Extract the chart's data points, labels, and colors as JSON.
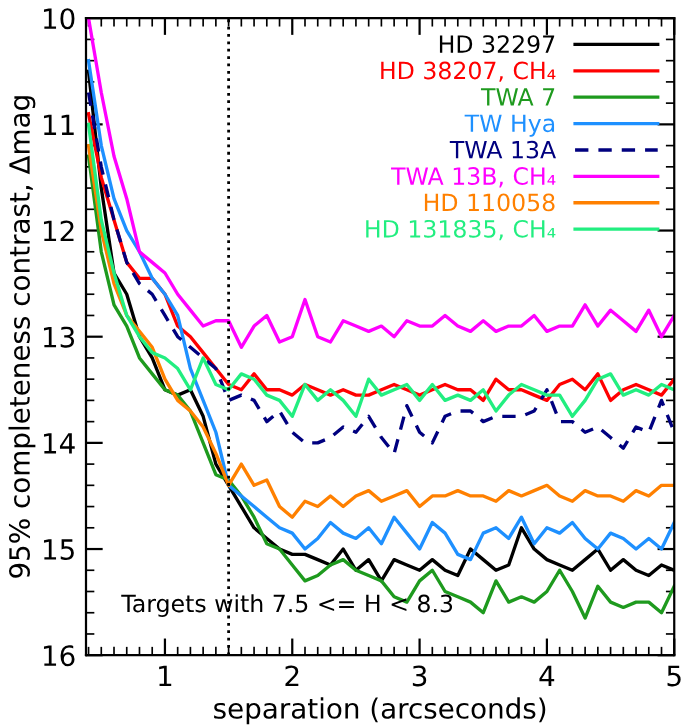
{
  "chart_data": {
    "type": "line",
    "xlabel": "separation (arcseconds)",
    "ylabel": "95% completeness contrast, Δmag",
    "x": [
      0.4,
      0.5,
      0.6,
      0.7,
      0.8,
      0.9,
      1.0,
      1.1,
      1.2,
      1.3,
      1.4,
      1.5,
      1.6,
      1.7,
      1.8,
      1.9,
      2.0,
      2.1,
      2.2,
      2.3,
      2.4,
      2.5,
      2.6,
      2.7,
      2.8,
      2.9,
      3.0,
      3.1,
      3.2,
      3.3,
      3.4,
      3.5,
      3.6,
      3.7,
      3.8,
      3.9,
      4.0,
      4.1,
      4.2,
      4.3,
      4.4,
      4.5,
      4.6,
      4.7,
      4.8,
      4.9,
      5.0
    ],
    "series": [
      {
        "name": "HD 32297",
        "color": "#000000",
        "line_style": "solid",
        "values": [
          10.5,
          11.6,
          12.4,
          12.6,
          13.0,
          13.2,
          13.5,
          13.55,
          13.5,
          13.75,
          14.2,
          14.4,
          14.6,
          14.8,
          14.9,
          15.0,
          15.05,
          15.05,
          15.1,
          15.15,
          15.0,
          15.2,
          15.1,
          15.3,
          15.1,
          15.15,
          15.2,
          15.1,
          15.2,
          15.25,
          15.0,
          15.1,
          15.2,
          15.15,
          14.8,
          15.0,
          15.1,
          15.15,
          15.2,
          15.1,
          15.0,
          15.2,
          15.1,
          15.2,
          15.25,
          15.15,
          15.2
        ]
      },
      {
        "name": "HD 38207, CH₄",
        "color": "#ff0000",
        "line_style": "solid",
        "values": [
          10.9,
          11.5,
          11.9,
          12.3,
          12.45,
          12.45,
          12.6,
          12.9,
          13.0,
          13.15,
          13.3,
          13.45,
          13.5,
          13.35,
          13.5,
          13.5,
          13.55,
          13.45,
          13.5,
          13.55,
          13.5,
          13.55,
          13.55,
          13.5,
          13.45,
          13.5,
          13.55,
          13.5,
          13.45,
          13.5,
          13.5,
          13.6,
          13.4,
          13.5,
          13.5,
          13.55,
          13.6,
          13.45,
          13.4,
          13.5,
          13.35,
          13.6,
          13.5,
          13.45,
          13.5,
          13.55,
          13.4
        ]
      },
      {
        "name": "TWA 7",
        "color": "#1e9a1e",
        "line_style": "solid",
        "values": [
          11.3,
          12.2,
          12.7,
          12.9,
          13.2,
          13.35,
          13.5,
          13.55,
          13.7,
          14.0,
          14.3,
          14.35,
          14.5,
          14.7,
          14.95,
          15.0,
          15.15,
          15.3,
          15.25,
          15.15,
          15.1,
          15.2,
          15.25,
          15.3,
          15.45,
          15.5,
          15.3,
          15.2,
          15.4,
          15.45,
          15.5,
          15.6,
          15.3,
          15.5,
          15.45,
          15.5,
          15.4,
          15.2,
          15.4,
          15.65,
          15.35,
          15.5,
          15.55,
          15.5,
          15.5,
          15.6,
          15.35
        ]
      },
      {
        "name": "TW Hya",
        "color": "#1e90ff",
        "line_style": "solid",
        "values": [
          10.4,
          11.2,
          11.7,
          12.0,
          12.2,
          12.45,
          12.6,
          12.8,
          13.3,
          13.6,
          13.9,
          14.4,
          14.5,
          14.6,
          14.7,
          14.8,
          14.85,
          15.0,
          14.9,
          14.75,
          14.85,
          14.9,
          14.8,
          14.95,
          14.7,
          14.85,
          15.0,
          14.75,
          14.85,
          15.05,
          15.1,
          14.85,
          14.8,
          14.9,
          14.7,
          14.95,
          14.8,
          14.85,
          14.75,
          14.9,
          15.0,
          14.85,
          14.9,
          15.0,
          14.9,
          15.0,
          14.75
        ]
      },
      {
        "name": "TWA 13A",
        "color": "#00007f",
        "line_style": "dashed",
        "values": [
          10.7,
          11.4,
          11.9,
          12.3,
          12.5,
          12.6,
          12.8,
          13.0,
          13.1,
          13.2,
          13.3,
          13.6,
          13.55,
          13.6,
          13.8,
          13.7,
          13.9,
          14.0,
          14.0,
          13.95,
          13.85,
          13.9,
          13.75,
          13.95,
          14.1,
          13.65,
          13.9,
          14.0,
          13.75,
          13.7,
          13.7,
          13.8,
          13.75,
          13.75,
          13.75,
          13.7,
          13.5,
          13.8,
          13.8,
          13.9,
          13.85,
          13.95,
          14.05,
          13.85,
          13.9,
          13.6,
          13.9
        ]
      },
      {
        "name": "TWA 13B, CH₄",
        "color": "#ff00ff",
        "line_style": "solid",
        "values": [
          10.0,
          10.7,
          11.3,
          11.7,
          12.2,
          12.3,
          12.4,
          12.6,
          12.75,
          12.9,
          12.85,
          12.85,
          13.1,
          12.9,
          12.8,
          13.05,
          13.0,
          12.65,
          13.0,
          13.05,
          12.85,
          12.9,
          12.95,
          12.9,
          13.0,
          12.85,
          12.9,
          12.9,
          12.8,
          12.9,
          12.95,
          12.85,
          12.95,
          12.9,
          12.9,
          12.8,
          12.95,
          12.9,
          12.9,
          12.7,
          12.9,
          12.75,
          12.85,
          12.95,
          12.75,
          13.0,
          12.8
        ]
      },
      {
        "name": "HD 110058",
        "color": "#ff8000",
        "line_style": "solid",
        "values": [
          11.2,
          12.0,
          12.5,
          12.8,
          12.95,
          13.1,
          13.4,
          13.6,
          13.7,
          13.85,
          14.1,
          14.4,
          14.2,
          14.4,
          14.35,
          14.6,
          14.7,
          14.55,
          14.6,
          14.5,
          14.6,
          14.5,
          14.45,
          14.55,
          14.5,
          14.45,
          14.6,
          14.5,
          14.5,
          14.45,
          14.5,
          14.5,
          14.55,
          14.45,
          14.5,
          14.45,
          14.4,
          14.5,
          14.55,
          14.45,
          14.5,
          14.5,
          14.55,
          14.45,
          14.5,
          14.4,
          14.4
        ]
      },
      {
        "name": "HD 131835, CH₄",
        "color": "#22ee80",
        "line_style": "solid",
        "values": [
          11.0,
          11.9,
          12.4,
          12.8,
          13.0,
          13.15,
          13.2,
          13.3,
          13.5,
          13.2,
          13.45,
          13.5,
          13.35,
          13.4,
          13.55,
          13.6,
          13.75,
          13.45,
          13.6,
          13.5,
          13.6,
          13.75,
          13.4,
          13.55,
          13.5,
          13.45,
          13.6,
          13.45,
          13.6,
          13.55,
          13.6,
          13.5,
          13.7,
          13.55,
          13.45,
          13.5,
          13.55,
          13.55,
          13.75,
          13.6,
          13.4,
          13.35,
          13.55,
          13.5,
          13.55,
          13.45,
          13.5
        ]
      }
    ],
    "xlim": [
      0.38,
      5
    ],
    "ylim": [
      16,
      10
    ],
    "xticks": [
      1,
      2,
      3,
      4,
      5
    ],
    "yticks": [
      10,
      11,
      12,
      13,
      14,
      15,
      16
    ],
    "ref_lines": [
      {
        "axis": "x",
        "value": 1.5,
        "color": "#000000",
        "line_style": "dotted"
      }
    ],
    "annotations": [
      "Targets with 7.5 <= H < 8.3"
    ],
    "grid": false,
    "legend": "top right",
    "marker": "none"
  }
}
